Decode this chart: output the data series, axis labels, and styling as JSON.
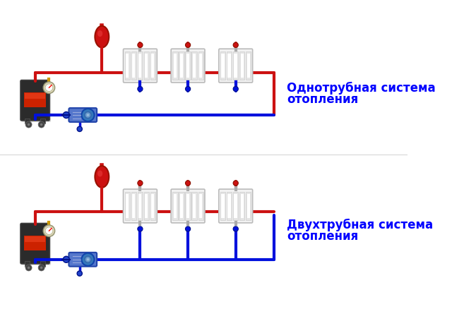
{
  "bg_color": "#ffffff",
  "red": "#cc1111",
  "blue": "#0011dd",
  "text1": "Однотрубная система",
  "text1b": "отопления",
  "text2": "Двухтрубная система",
  "text2b": "отопления",
  "text_color": "#0000ff",
  "text_fontsize": 12,
  "pipe_lw": 3.0
}
